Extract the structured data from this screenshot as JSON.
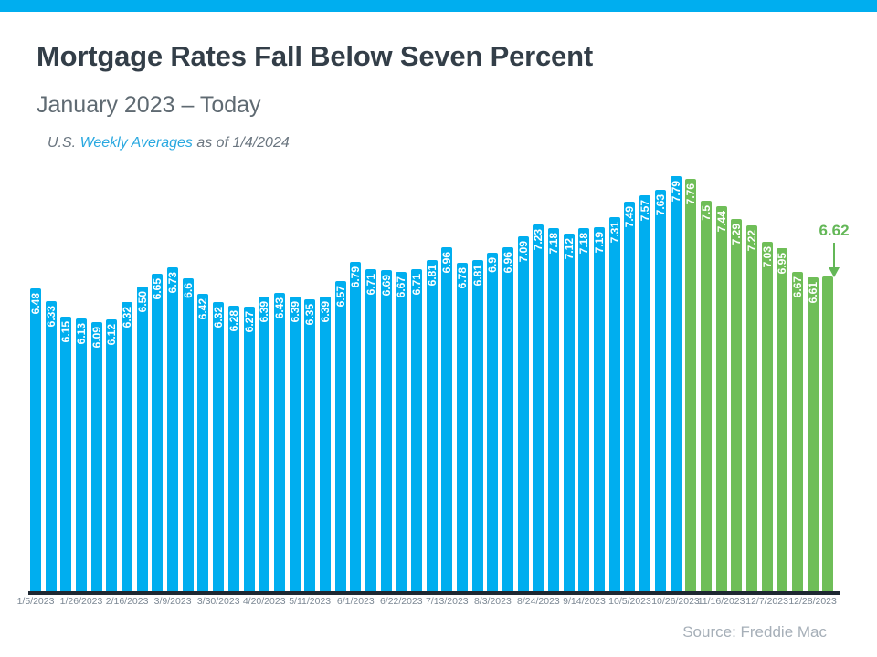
{
  "colors": {
    "accent_blue": "#00AEEF",
    "accent_green": "#6FBE58",
    "annotation_green": "#63B757",
    "title_dark": "#333E48",
    "axis_line": "#1E2832"
  },
  "header": {
    "title": "Mortgage Rates Fall Below Seven Percent",
    "subtitle": "January 2023 – Today",
    "note_prefix": "U.S. ",
    "note_link": "Weekly Averages",
    "note_suffix": " as of 1/4/2024"
  },
  "chart_data": {
    "type": "bar",
    "title": "Mortgage Rates Fall Below Seven Percent",
    "subtitle": "January 2023 – Today",
    "values": [
      6.48,
      6.33,
      6.15,
      6.13,
      6.09,
      6.12,
      6.32,
      6.5,
      6.65,
      6.73,
      6.6,
      6.42,
      6.32,
      6.28,
      6.27,
      6.39,
      6.43,
      6.39,
      6.35,
      6.39,
      6.57,
      6.79,
      6.71,
      6.69,
      6.67,
      6.71,
      6.81,
      6.96,
      6.78,
      6.81,
      6.9,
      6.96,
      7.09,
      7.23,
      7.18,
      7.12,
      7.18,
      7.19,
      7.31,
      7.49,
      7.57,
      7.63,
      7.79,
      7.76,
      7.5,
      7.44,
      7.29,
      7.22,
      7.03,
      6.95,
      6.67,
      6.61,
      6.62
    ],
    "bar_labels": [
      "6.48",
      "6.33",
      "6.15",
      "6.13",
      "6.09",
      "6.12",
      "6.32",
      "6.50",
      "6.65",
      "6.73",
      "6.6",
      "6.42",
      "6.32",
      "6.28",
      "6.27",
      "6.39",
      "6.43",
      "6.39",
      "6.35",
      "6.39",
      "6.57",
      "6.79",
      "6.71",
      "6.69",
      "6.67",
      "6.71",
      "6.81",
      "6.96",
      "6.78",
      "6.81",
      "6.9",
      "6.96",
      "7.09",
      "7.23",
      "7.18",
      "7.12",
      "7.18",
      "7.19",
      "7.31",
      "7.49",
      "7.57",
      "7.63",
      "7.79",
      "7.76",
      "7.5",
      "7.44",
      "7.29",
      "7.22",
      "7.03",
      "6.95",
      "6.67",
      "6.61",
      ""
    ],
    "green_from_index": 43,
    "bar_color_blue": "#00AEEF",
    "bar_color_green": "#6FBE58",
    "x_tick_labels": [
      "1/5/2023",
      "1/26/2023",
      "2/16/2023",
      "3/9/2023",
      "3/30/2023",
      "4/20/2023",
      "5/11/2023",
      "6/1/2023",
      "6/22/2023",
      "7/13/2023",
      "8/3/2023",
      "8/24/2023",
      "9/14/2023",
      "10/5/2023",
      "10/26/2023",
      "11/16/2023",
      "12/7/2023",
      "12/28/2023"
    ],
    "x_tick_every": 3,
    "ylim": [
      2.95,
      7.9
    ],
    "grid": false,
    "legend": false,
    "annotation": {
      "label": "6.62",
      "color": "#63B757"
    }
  },
  "footer": {
    "source": "Source: Freddie Mac"
  }
}
